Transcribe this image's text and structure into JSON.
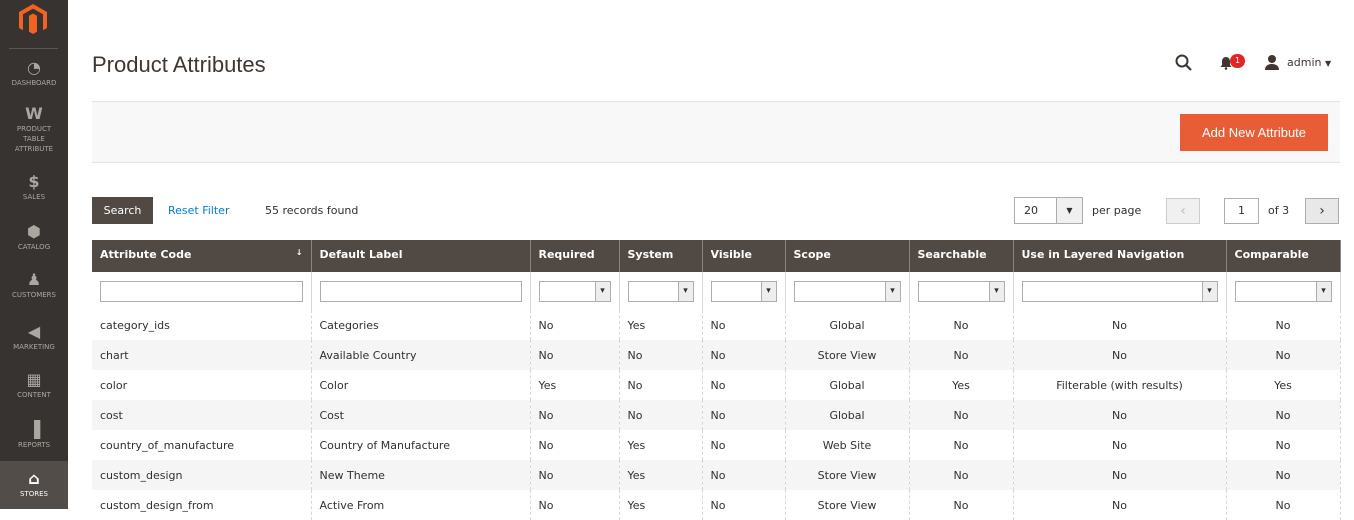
{
  "sidebar": {
    "items": [
      {
        "label": "DASHBOARD",
        "icon": "dashboard-icon",
        "glyph": "◔"
      },
      {
        "label": "PRODUCT TABLE ATTRIBUTE",
        "icon": "w-icon",
        "glyph": "W"
      },
      {
        "label": "SALES",
        "icon": "dollar-icon",
        "glyph": "$"
      },
      {
        "label": "CATALOG",
        "icon": "box-icon",
        "glyph": "⬢"
      },
      {
        "label": "CUSTOMERS",
        "icon": "person-icon",
        "glyph": "♟"
      },
      {
        "label": "MARKETING",
        "icon": "megaphone-icon",
        "glyph": "◀"
      },
      {
        "label": "CONTENT",
        "icon": "layout-icon",
        "glyph": "▦"
      },
      {
        "label": "REPORTS",
        "icon": "bar-chart-icon",
        "glyph": "▐"
      },
      {
        "label": "STORES",
        "icon": "store-icon",
        "glyph": "⌂",
        "active": true
      }
    ]
  },
  "header": {
    "title": "Product Attributes",
    "notifications": "1",
    "user": "admin"
  },
  "actions": {
    "add_label": "Add New Attribute"
  },
  "toolbar": {
    "search_label": "Search",
    "reset_label": "Reset Filter",
    "records": "55 records found",
    "per_page_value": "20",
    "per_page_label": "per page",
    "page": "1",
    "of_pages": "of 3"
  },
  "colors": {
    "accent": "#e85d35",
    "header_bg": "#514943",
    "sidebar_bg": "#373330"
  },
  "table": {
    "columns": [
      "Attribute Code",
      "Default Label",
      "Required",
      "System",
      "Visible",
      "Scope",
      "Searchable",
      "Use in Layered Navigation",
      "Comparable"
    ],
    "rows": [
      [
        "category_ids",
        "Categories",
        "No",
        "Yes",
        "No",
        "Global",
        "No",
        "No",
        "No"
      ],
      [
        "chart",
        "Available Country",
        "No",
        "No",
        "No",
        "Store View",
        "No",
        "No",
        "No"
      ],
      [
        "color",
        "Color",
        "Yes",
        "No",
        "No",
        "Global",
        "Yes",
        "Filterable (with results)",
        "Yes"
      ],
      [
        "cost",
        "Cost",
        "No",
        "No",
        "No",
        "Global",
        "No",
        "No",
        "No"
      ],
      [
        "country_of_manufacture",
        "Country of Manufacture",
        "No",
        "Yes",
        "No",
        "Web Site",
        "No",
        "No",
        "No"
      ],
      [
        "custom_design",
        "New Theme",
        "No",
        "Yes",
        "No",
        "Store View",
        "No",
        "No",
        "No"
      ],
      [
        "custom_design_from",
        "Active From",
        "No",
        "Yes",
        "No",
        "Store View",
        "No",
        "No",
        "No"
      ]
    ]
  }
}
